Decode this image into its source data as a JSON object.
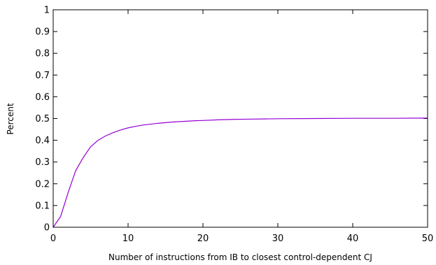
{
  "chart_data": {
    "type": "line",
    "title": "",
    "xlabel": "Number of instructions from IB to closest control-dependent CJ",
    "ylabel": "Percent",
    "xlim": [
      0,
      50
    ],
    "ylim": [
      0,
      1
    ],
    "xticks": [
      "0",
      "10",
      "20",
      "30",
      "40",
      "50"
    ],
    "yticks": [
      "0",
      "0.1",
      "0.2",
      "0.3",
      "0.4",
      "0.5",
      "0.6",
      "0.7",
      "0.8",
      "0.9",
      "1"
    ],
    "grid": false,
    "legend": "none",
    "series": [
      {
        "color": "#9400d3",
        "x": [
          0,
          1,
          2,
          3,
          4,
          5,
          6,
          7,
          8,
          9,
          10,
          11,
          12,
          13,
          14,
          15,
          16,
          17,
          18,
          19,
          20,
          22,
          24,
          26,
          28,
          30,
          35,
          40,
          45,
          50
        ],
        "y": [
          0,
          0.05,
          0.16,
          0.26,
          0.32,
          0.37,
          0.4,
          0.42,
          0.435,
          0.447,
          0.457,
          0.464,
          0.47,
          0.474,
          0.478,
          0.481,
          0.484,
          0.486,
          0.488,
          0.49,
          0.491,
          0.494,
          0.496,
          0.497,
          0.498,
          0.499,
          0.5,
          0.501,
          0.501,
          0.502
        ]
      }
    ]
  }
}
